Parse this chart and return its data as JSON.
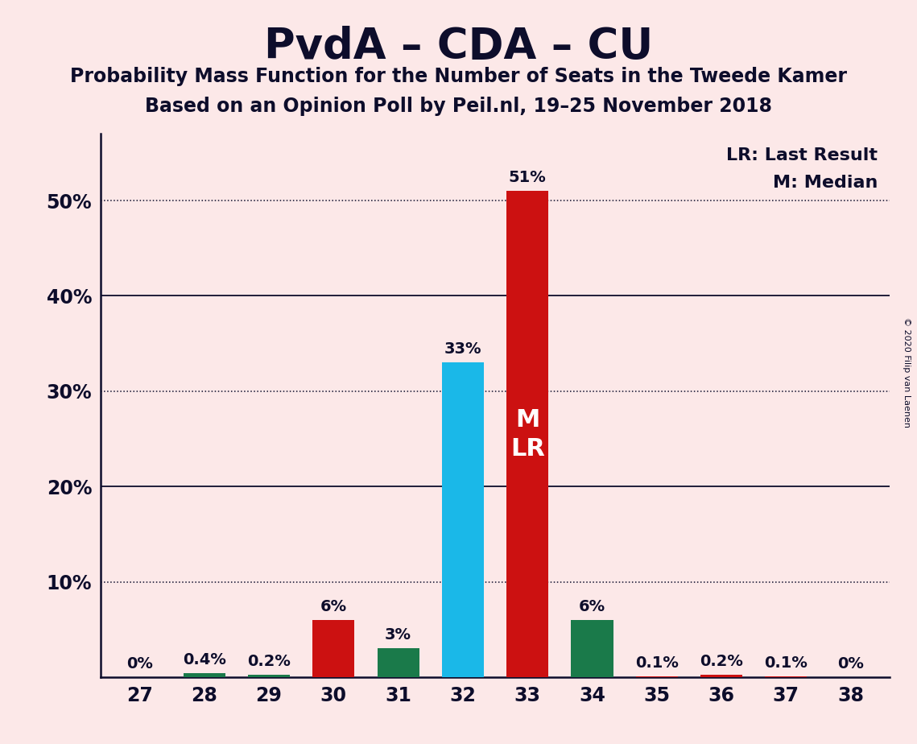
{
  "title": "PvdA – CDA – CU",
  "subtitle1": "Probability Mass Function for the Number of Seats in the Tweede Kamer",
  "subtitle2": "Based on an Opinion Poll by Peil.nl, 19–25 November 2018",
  "copyright": "© 2020 Filip van Laenen",
  "background_color": "#fce8e8",
  "text_color": "#0d0d2b",
  "categories": [
    27,
    28,
    29,
    30,
    31,
    32,
    33,
    34,
    35,
    36,
    37,
    38
  ],
  "values": [
    0.0,
    0.4,
    0.2,
    6.0,
    3.0,
    33.0,
    51.0,
    6.0,
    0.1,
    0.2,
    0.1,
    0.0
  ],
  "bar_colors": [
    "#cc1111",
    "#1a7a4a",
    "#1a7a4a",
    "#cc1111",
    "#1a7a4a",
    "#1ab8e8",
    "#cc1111",
    "#1a7a4a",
    "#cc1111",
    "#cc1111",
    "#cc1111",
    "#cc1111"
  ],
  "labels": [
    "0%",
    "0.4%",
    "0.2%",
    "6%",
    "3%",
    "33%",
    "51%",
    "6%",
    "0.1%",
    "0.2%",
    "0.1%",
    "0%"
  ],
  "median_seat": 33,
  "last_result_seat": 33,
  "ylim": [
    0,
    57
  ],
  "yticks": [
    10,
    20,
    30,
    40,
    50
  ],
  "ytick_labels": [
    "10%",
    "20%",
    "30%",
    "40%",
    "50%"
  ],
  "solid_gridlines": [
    20,
    40
  ],
  "dotted_gridlines": [
    10,
    30,
    50
  ],
  "legend_lr": "LR: Last Result",
  "legend_m": "M: Median"
}
